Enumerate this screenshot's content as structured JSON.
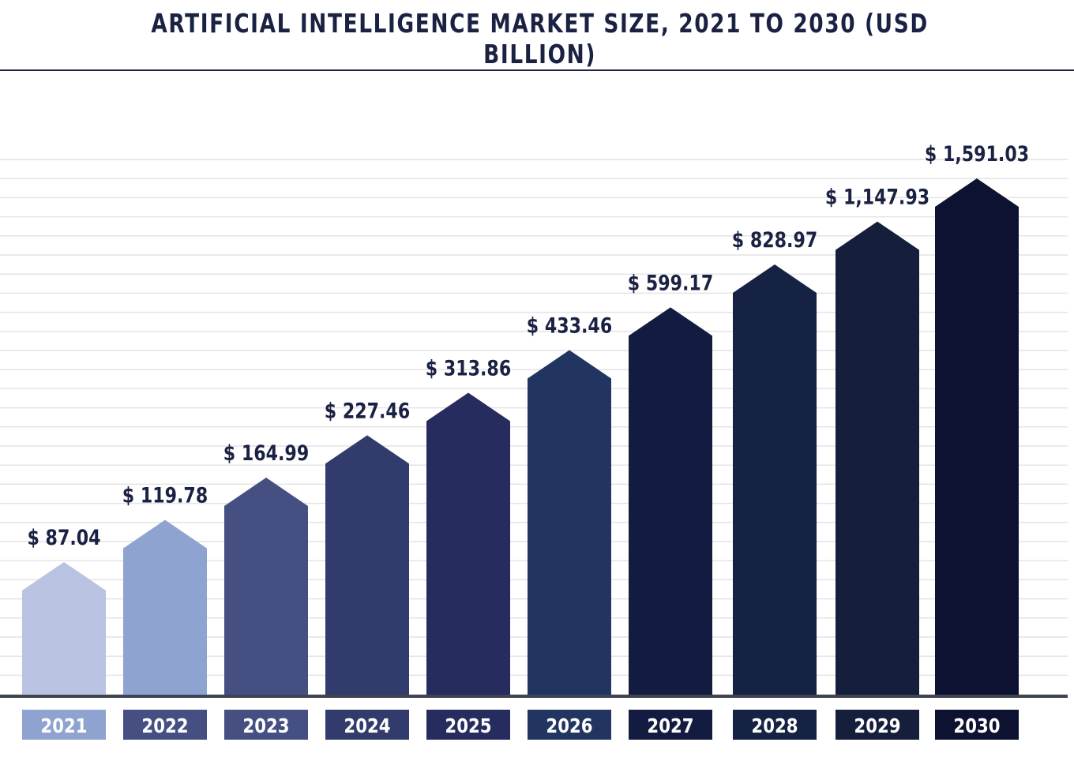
{
  "chart_data": {
    "type": "bar",
    "title": "ARTIFICIAL INTELLIGENCE MARKET SIZE, 2021 TO 2030 (USD BILLION)",
    "categories": [
      "2021",
      "2022",
      "2023",
      "2024",
      "2025",
      "2026",
      "2027",
      "2028",
      "2029",
      "2030"
    ],
    "values": [
      87.04,
      119.78,
      164.99,
      227.46,
      313.86,
      433.46,
      599.17,
      828.97,
      1147.93,
      1591.03
    ],
    "value_labels": [
      "$ 87.04",
      "$ 119.78",
      "$ 164.99",
      "$ 227.46",
      "$ 313.86",
      "$ 433.46",
      "$ 599.17",
      "$ 828.97",
      "$ 1,147.93",
      "$ 1,591.03"
    ],
    "bar_colors": [
      "#b9c2e0",
      "#8fa3d0",
      "#454f82",
      "#313c6c",
      "#262c5e",
      "#223560",
      "#141b40",
      "#162244",
      "#151e3b",
      "#0c1230"
    ],
    "label_box_colors": [
      "#8fa3d0",
      "#454f82",
      "#454f82",
      "#313c6c",
      "#262c5e",
      "#223560",
      "#141b40",
      "#162244",
      "#151e3b",
      "#0c1230"
    ],
    "grid": true,
    "legend": "none"
  }
}
